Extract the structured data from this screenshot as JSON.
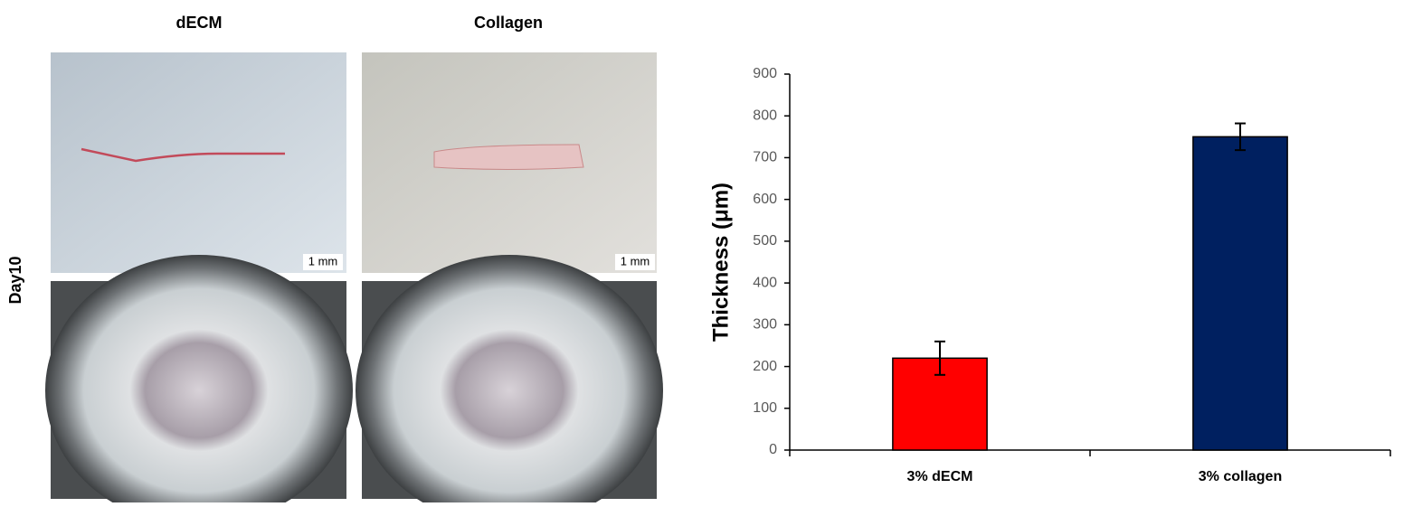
{
  "figure": {
    "column_labels": [
      "dECM",
      "Collagen"
    ],
    "row_label": "Day10",
    "scale_bars": [
      "1 mm",
      "1 mm"
    ]
  },
  "chart_data": {
    "type": "bar",
    "ylabel": "Thickness (μm)",
    "categories": [
      "3% dECM",
      "3% collagen"
    ],
    "values": [
      220,
      750
    ],
    "errors": [
      40,
      32
    ],
    "colors": [
      "#ff0000",
      "#002060"
    ],
    "ylim": [
      0,
      900
    ],
    "yticks": [
      0,
      100,
      200,
      300,
      400,
      500,
      600,
      700,
      800,
      900
    ],
    "grid": false
  }
}
